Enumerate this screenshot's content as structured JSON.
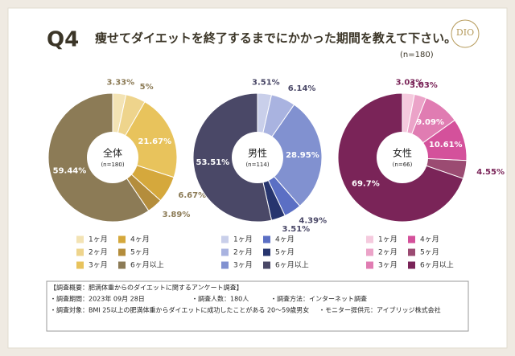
{
  "header": {
    "q": "Q4",
    "title": "痩せてダイエットを終了するまでにかかった期間を教えて下さい。",
    "n": "(n=180)",
    "logo": "DIO"
  },
  "chart_data": [
    {
      "type": "donut",
      "center_label": "全体",
      "center_n": "(n=180)",
      "categories": [
        "1ヶ月",
        "2ヶ月",
        "3ヶ月",
        "4ヶ月",
        "5ヶ月",
        "6ヶ月以上"
      ],
      "values": [
        3.33,
        5,
        21.67,
        6.67,
        3.89,
        59.44
      ],
      "value_labels": [
        "3.33%",
        "5%",
        "21.67%",
        "6.67%",
        "3.89%",
        "59.44%"
      ],
      "colors": [
        "#f3e3b4",
        "#eed48c",
        "#e8c35c",
        "#d5a83c",
        "#b48d3c",
        "#8c7b56"
      ]
    },
    {
      "type": "donut",
      "center_label": "男性",
      "center_n": "(n=114)",
      "categories": [
        "1ヶ月",
        "2ヶ月",
        "3ヶ月",
        "4ヶ月",
        "5ヶ月",
        "6ヶ月以上"
      ],
      "values": [
        3.51,
        6.14,
        28.95,
        4.39,
        3.51,
        53.51
      ],
      "value_labels": [
        "3.51%",
        "6.14%",
        "28.95%",
        "4.39%",
        "3.51%",
        "53.51%"
      ],
      "colors": [
        "#c9cfea",
        "#a9b3e0",
        "#8191d0",
        "#5b6fc4",
        "#27356e",
        "#4a4867"
      ]
    },
    {
      "type": "donut",
      "center_label": "女性",
      "center_n": "(n=66)",
      "categories": [
        "1ヶ月",
        "2ヶ月",
        "3ヶ月",
        "4ヶ月",
        "5ヶ月",
        "6ヶ月以上"
      ],
      "values": [
        3.03,
        3.03,
        9.09,
        10.61,
        4.55,
        69.7
      ],
      "value_labels": [
        "3.03%",
        "3.03%",
        "9.09%",
        "10.61%",
        "4.55%",
        "69.7%"
      ],
      "colors": [
        "#f5cade",
        "#eba3c8",
        "#e07cb2",
        "#d4519b",
        "#9b4b72",
        "#7a2458"
      ]
    }
  ],
  "footer": {
    "heading": "【調査概要：肥満体重からのダイエットに関するアンケート調査】",
    "period": "・調査期間：2023年 09月 28日",
    "count": "・調査人数：180人",
    "method": "・調査方法：インターネット調査",
    "target": "・調査対象：BMI 25以上の肥満体重からダイエットに成功したことがある 20～59歳男女",
    "provider": "・モニター提供元：アイブリッジ株式会社"
  }
}
